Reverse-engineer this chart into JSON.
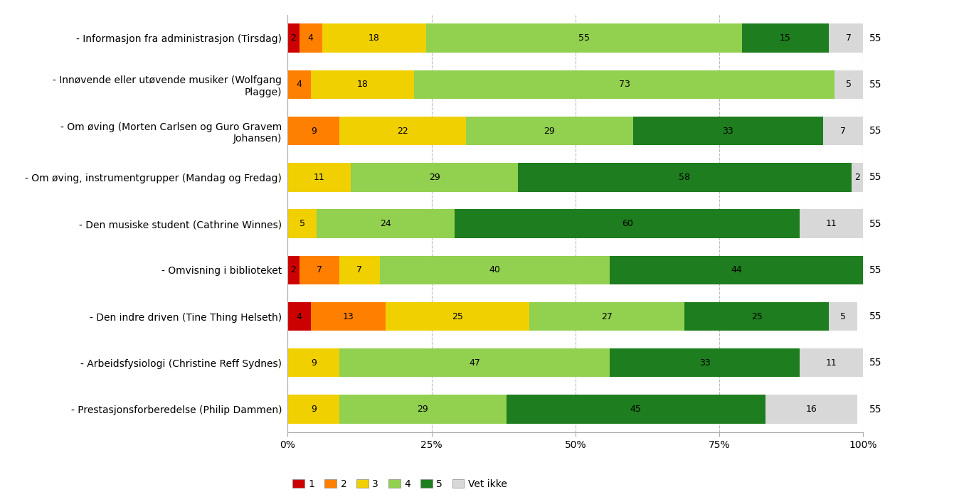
{
  "categories": [
    "- Informasjon fra administrasjon (Tirsdag)",
    "- Innøvende eller utøvende musiker (Wolfgang\nPlagge)",
    "- Om øving (Morten Carlsen og Guro Gravem\nJohansen)",
    "- Om øving, instrumentgrupper (Mandag og Fredag)",
    "- Den musiske student (Cathrine Winnes)",
    "- Omvisning i biblioteket",
    "- Den indre driven (Tine Thing Helseth)",
    "- Arbeidsfysiologi (Christine Reff Sydnes)",
    "- Prestasjonsforberedelse (Philip Dammen)"
  ],
  "n_values": [
    55,
    55,
    55,
    55,
    55,
    55,
    55,
    55,
    55
  ],
  "data": {
    "1": [
      2,
      0,
      0,
      0,
      0,
      2,
      4,
      0,
      0
    ],
    "2": [
      4,
      4,
      9,
      0,
      0,
      7,
      13,
      0,
      0
    ],
    "3": [
      18,
      18,
      22,
      11,
      5,
      7,
      25,
      9,
      9
    ],
    "4": [
      55,
      73,
      29,
      29,
      24,
      40,
      27,
      47,
      29
    ],
    "5": [
      15,
      0,
      33,
      58,
      60,
      44,
      25,
      33,
      45
    ],
    "vet_ikke": [
      7,
      5,
      7,
      2,
      11,
      0,
      5,
      11,
      16
    ]
  },
  "colors": {
    "1": "#cc0000",
    "2": "#ff8000",
    "3": "#f0d000",
    "4": "#92d050",
    "5": "#1e7d1e",
    "vet_ikke": "#d8d8d8"
  },
  "legend_labels": [
    "1",
    "2",
    "3",
    "4",
    "5",
    "Vet ikke"
  ],
  "background_color": "#ffffff",
  "grid_color": "#bbbbbb"
}
